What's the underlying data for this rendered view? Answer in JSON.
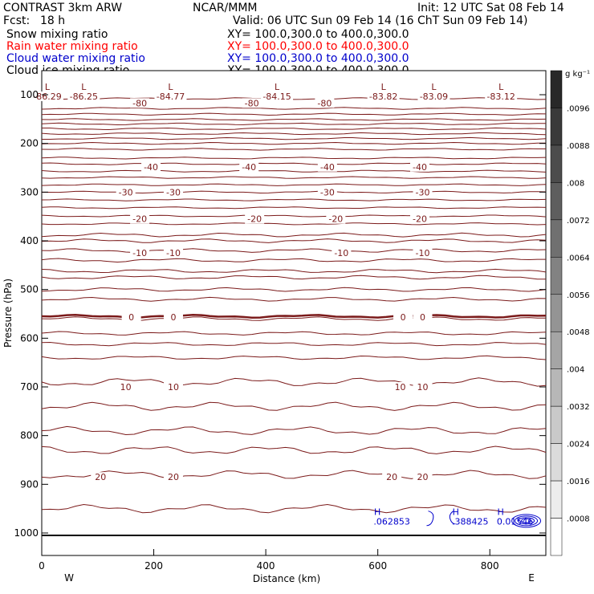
{
  "header": {
    "title": "CONTRAST  3km ARW",
    "center": "NCAR/MMM",
    "init": "Init: 12 UTC Sat 08 Feb 14",
    "fcst_label": "Fcst:",
    "fcst_value": "18 h",
    "valid": "Valid: 06 UTC Sun 09 Feb 14 (16 ChT Sun 09 Feb 14)"
  },
  "fields": [
    {
      "name": "Snow mixing ratio",
      "xy": "XY= 100.0,300.0 to 400.0,300.0",
      "color": "#000000"
    },
    {
      "name": "Rain water mixing ratio",
      "xy": "XY= 100.0,300.0 to 400.0,300.0",
      "color": "#ff0000"
    },
    {
      "name": "Cloud water mixing ratio",
      "xy": "XY= 100.0,300.0 to 400.0,300.0",
      "color": "#0000cc"
    },
    {
      "name": "Cloud ice mixing ratio",
      "xy": "XY= 100.0,300.0 to 400.0,300.0",
      "color": "#000000"
    }
  ],
  "colors": {
    "temperature_contour": "#7b1a1a",
    "cloud_water": "#0000cc",
    "axis": "#000000"
  },
  "chart_data": {
    "type": "contour",
    "xlabel": "Distance (km)",
    "ylabel": "Pressure (hPa)",
    "xlim": [
      0,
      900
    ],
    "ylim": [
      1050,
      70
    ],
    "xticks": [
      0,
      200,
      400,
      600,
      800
    ],
    "yticks": [
      100,
      200,
      300,
      400,
      500,
      600,
      700,
      800,
      900,
      1000
    ],
    "x_end_labels": {
      "left": "W",
      "right": "E"
    },
    "colorbar": {
      "unit": "g kg⁻¹",
      "ticks": [
        ".0096",
        ".0088",
        ".008",
        ".0072",
        ".0064",
        ".0056",
        ".0048",
        ".004",
        ".0032",
        ".0024",
        ".0016",
        ".0008"
      ]
    },
    "temperature_contours": [
      {
        "level": -80,
        "labels": [
          {
            "x": 175,
            "text": "-80"
          },
          {
            "x": 375,
            "text": "-80"
          },
          {
            "x": 505,
            "text": "-80"
          }
        ]
      },
      {
        "level": -40,
        "labels": [
          {
            "x": 195,
            "text": "-40"
          },
          {
            "x": 370,
            "text": "-40"
          },
          {
            "x": 510,
            "text": "-40"
          },
          {
            "x": 675,
            "text": "-40"
          }
        ]
      },
      {
        "level": -30,
        "labels": [
          {
            "x": 150,
            "text": "-30"
          },
          {
            "x": 235,
            "text": "-30"
          },
          {
            "x": 510,
            "text": "-30"
          },
          {
            "x": 680,
            "text": "-30"
          }
        ]
      },
      {
        "level": -20,
        "labels": [
          {
            "x": 175,
            "text": "-20"
          },
          {
            "x": 380,
            "text": "-20"
          },
          {
            "x": 525,
            "text": "-20"
          },
          {
            "x": 675,
            "text": "-20"
          }
        ]
      },
      {
        "level": -10,
        "labels": [
          {
            "x": 175,
            "text": "-10"
          },
          {
            "x": 235,
            "text": "-10"
          },
          {
            "x": 535,
            "text": "-10"
          },
          {
            "x": 680,
            "text": "-10"
          }
        ]
      },
      {
        "level": 0,
        "labels": [
          {
            "x": 160,
            "text": "0"
          },
          {
            "x": 235,
            "text": "0"
          },
          {
            "x": 645,
            "text": "0"
          },
          {
            "x": 680,
            "text": "0"
          }
        ]
      },
      {
        "level": 10,
        "labels": [
          {
            "x": 150,
            "text": "10"
          },
          {
            "x": 235,
            "text": "10"
          },
          {
            "x": 640,
            "text": "10"
          },
          {
            "x": 680,
            "text": "10"
          }
        ]
      },
      {
        "level": 20,
        "labels": [
          {
            "x": 105,
            "text": "20"
          },
          {
            "x": 235,
            "text": "20"
          },
          {
            "x": 625,
            "text": "20"
          },
          {
            "x": 680,
            "text": "20"
          }
        ]
      }
    ],
    "minima_labels": [
      {
        "mark": "L",
        "value": "-86.29",
        "x": 10
      },
      {
        "mark": "L",
        "value": "-86.25",
        "x": 75
      },
      {
        "mark": "L",
        "value": "-84.77",
        "x": 230
      },
      {
        "mark": "L",
        "value": "-84.15",
        "x": 420
      },
      {
        "mark": "L",
        "value": "-83.82",
        "x": 610
      },
      {
        "mark": "L",
        "value": "-83.09",
        "x": 700
      },
      {
        "mark": "L",
        "value": "-83.12",
        "x": 820
      }
    ],
    "cloud_water_maxima": [
      {
        "mark": "H",
        "value": ".062853",
        "x": 625
      },
      {
        "mark": "H",
        "value": ".388425",
        "x": 765
      },
      {
        "mark": "H",
        "value": "0.01546",
        "x": 845
      }
    ]
  }
}
